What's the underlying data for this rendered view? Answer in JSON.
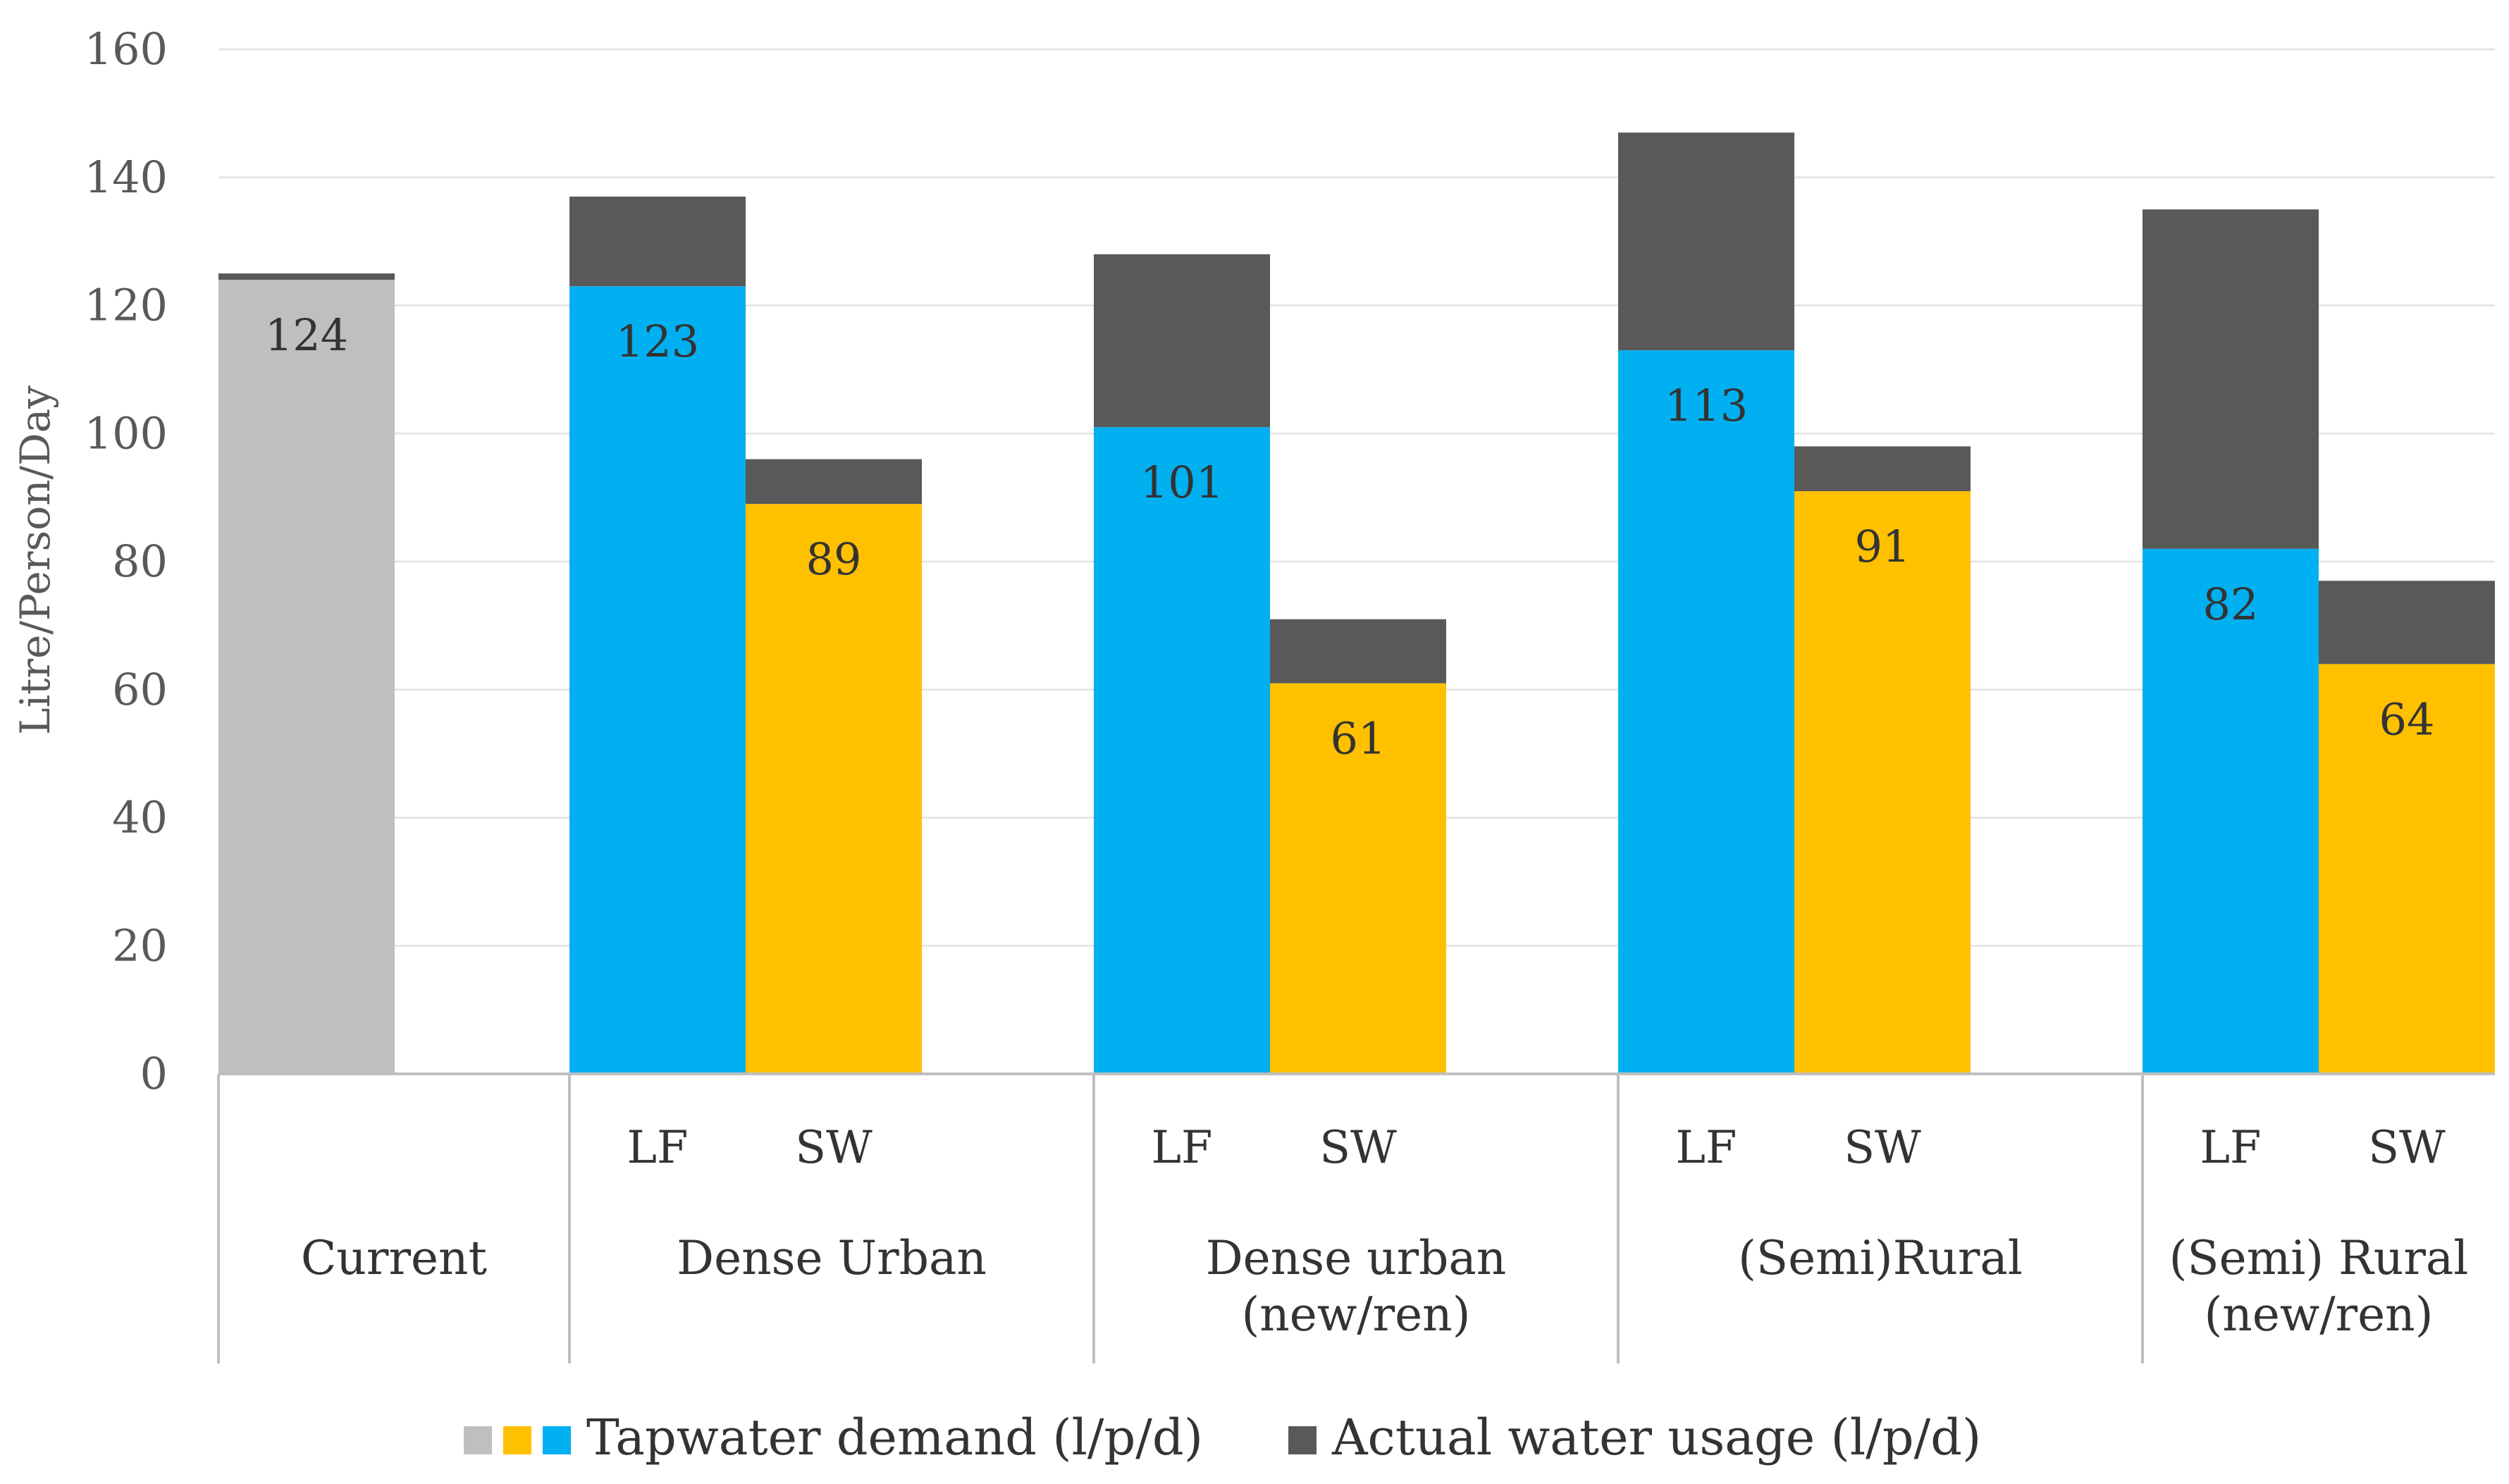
{
  "chart_data": {
    "type": "bar",
    "stacked": true,
    "ylabel": "Litre/Person/Day",
    "ylim": [
      0,
      160
    ],
    "yticks": [
      0,
      20,
      40,
      60,
      80,
      100,
      120,
      140,
      160
    ],
    "grid": true,
    "groups": [
      {
        "label": "Current",
        "bars": [
          {
            "sub": "",
            "demand": 124,
            "demand_label": "124",
            "usage_extra": 1,
            "kind": "current"
          }
        ]
      },
      {
        "label": "Dense Urban",
        "bars": [
          {
            "sub": "LF",
            "demand": 123,
            "demand_label": "123",
            "usage_extra": 14,
            "kind": "LF"
          },
          {
            "sub": "SW",
            "demand": 89,
            "demand_label": "89",
            "usage_extra": 7,
            "kind": "SW"
          }
        ]
      },
      {
        "label": "Dense urban (new/ren)",
        "label_lines": [
          "Dense urban",
          "(new/ren)"
        ],
        "bars": [
          {
            "sub": "LF",
            "demand": 101,
            "demand_label": "101",
            "usage_extra": 27,
            "kind": "LF"
          },
          {
            "sub": "SW",
            "demand": 61,
            "demand_label": "61",
            "usage_extra": 10,
            "kind": "SW"
          }
        ]
      },
      {
        "label": "(Semi)Rural",
        "bars": [
          {
            "sub": "LF",
            "demand": 113,
            "demand_label": "113",
            "usage_extra": 34,
            "kind": "LF"
          },
          {
            "sub": "SW",
            "demand": 91,
            "demand_label": "91",
            "usage_extra": 7,
            "kind": "SW"
          }
        ]
      },
      {
        "label": "(Semi) Rural (new/ren)",
        "label_lines": [
          "(Semi) Rural",
          "(new/ren)"
        ],
        "bars": [
          {
            "sub": "LF",
            "demand": 82,
            "demand_label": "82",
            "usage_extra": 53,
            "kind": "LF"
          },
          {
            "sub": "SW",
            "demand": 64,
            "demand_label": "64",
            "usage_extra": 13,
            "kind": "SW"
          }
        ]
      }
    ],
    "legend": [
      {
        "label": "Tapwater demand (l/p/d)",
        "swatches": [
          "current",
          "SW",
          "LF"
        ]
      },
      {
        "label": "Actual water usage (l/p/d)",
        "swatches": [
          "usage"
        ]
      }
    ],
    "legend_position": "bottom"
  },
  "colors": {
    "current": "#bfbfbf",
    "LF": "#00b0f0",
    "SW": "#ffc000",
    "usage": "#595959",
    "grid": "#e6e6e6",
    "axis": "#bfbfbf"
  }
}
